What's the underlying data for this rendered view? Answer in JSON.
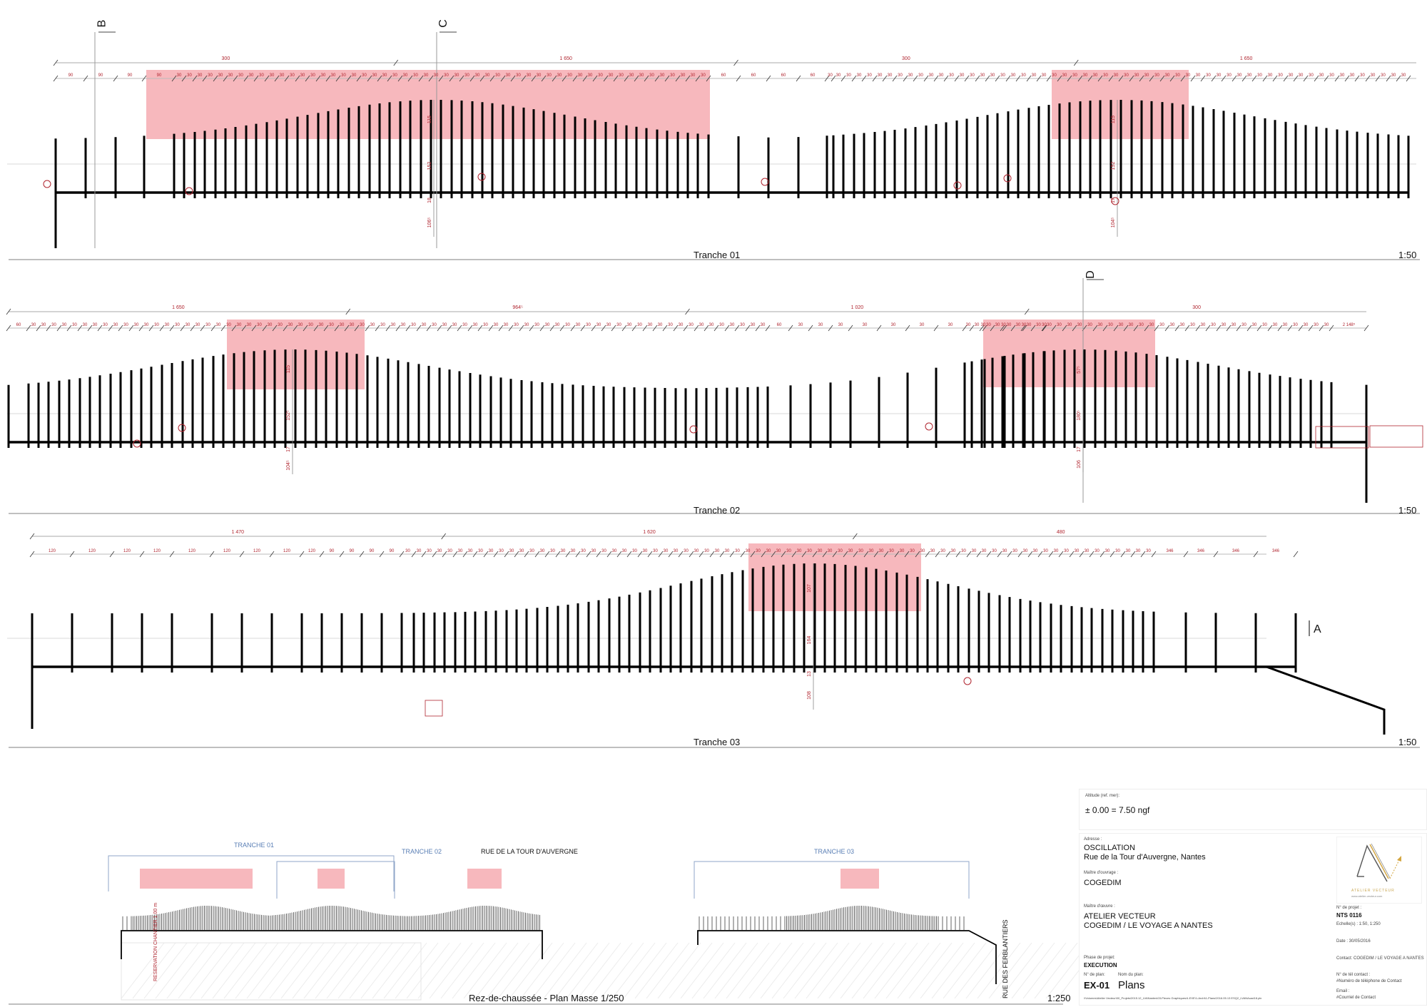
{
  "drawing": {
    "section_markers": [
      "B",
      "C",
      "D",
      "A"
    ],
    "dim_color": "#b0252f",
    "highlight_color": "#f7b8bd",
    "post_color": "#000000",
    "plan_label_color": "#5a7fb5"
  },
  "tranches": [
    {
      "label": "Tranche 01",
      "scale": "1:50",
      "overall_dims": [
        "300",
        "1 650",
        "300",
        "1 650"
      ],
      "detail_dims": [
        "90",
        "90",
        "60",
        "60",
        "30",
        "60",
        "90",
        "120",
        "90",
        "60",
        "30"
      ],
      "vertical_dims": [
        {
          "values": [
            "115",
            "152",
            "18",
            "106⁵"
          ]
        },
        {
          "values": [
            "115",
            "152",
            "17",
            "104⁵"
          ]
        }
      ],
      "segments": [
        {
          "type": "flat",
          "count": 4,
          "spacing": 90
        },
        {
          "type": "arch",
          "count": 53,
          "spacing": 30
        },
        {
          "type": "flat",
          "count": 5,
          "spacing": 90
        },
        {
          "type": "arch",
          "count": 53,
          "spacing": 30
        }
      ]
    },
    {
      "label": "Tranche 02",
      "scale": "1:50",
      "overall_dims": [
        "1 650",
        "964⁵",
        "1 020",
        "300"
      ],
      "detail_dims": [
        "60",
        "30",
        "60",
        "90",
        "94⁵",
        "60",
        "30",
        "60",
        "90",
        "2 148⁵"
      ],
      "vertical_dims": [
        {
          "values": [
            "115",
            "152⁵",
            "17",
            "104⁵"
          ]
        },
        {
          "values": [
            "57⁵",
            "180⁵",
            "17",
            "106"
          ]
        }
      ]
    },
    {
      "label": "Tranche 03",
      "scale": "1:50",
      "overall_dims": [
        "1 470",
        "1 620",
        "480"
      ],
      "detail_dims": [
        "120",
        "120",
        "90",
        "90",
        "120",
        "90",
        "90",
        "90",
        "60",
        "60",
        "60",
        "60",
        "60",
        "30",
        "60",
        "90",
        "90",
        "120",
        "120",
        "346"
      ],
      "vertical_dims": [
        {
          "values": [
            "107",
            "164",
            "13",
            "108"
          ]
        }
      ]
    }
  ],
  "plan": {
    "caption": "Rez-de-chaussée - Plan Masse 1/250",
    "scale": "1:250",
    "tranche_labels": [
      "TRANCHE 01",
      "TRANCHE 02",
      "TRANCHE 03"
    ],
    "street_top": "RUE DE LA TOUR D'AUVERGNE",
    "street_side": "RUE DES FERBLANTIERS",
    "reservation": "RESERVATION CHANTIER 1.00 m"
  },
  "title_block": {
    "altitude_label": "Altitude (ref. mer):",
    "altitude_value": "± 0.00 = 7.50 ngf",
    "address_label": "Adresse :",
    "project_name": "OSCILLATION",
    "address": "Rue de la Tour d'Auvergne, Nantes",
    "owner_label": "Maître d'ouvrage :",
    "owner": "COGEDIM",
    "architect_label": "Maître d'œuvre :",
    "architect_line1": "ATELIER VECTEUR",
    "architect_line2": "COGEDIM / LE VOYAGE A NANTES",
    "logo_text": "ATELIER VECTEUR",
    "logo_url_text": "www.atelier-vecteur.com",
    "project_no_label": "N° de projet :",
    "project_no": "NTS 0116",
    "scales": "Echelle(s) : 1:50, 1:250",
    "date": "Date : 30/05/2016",
    "contact": "Contact: COGEDIM / LE VOYAGE A NANTES",
    "phase_label": "Phase de projet:",
    "phase": "EXECUTION",
    "plan_no_label": "N° de plan:",
    "plan_no": "EX-01",
    "plan_name_label": "Nom du plan:",
    "plan_name": "Plans",
    "phone_label": "N° de tél contact :",
    "phone": "#Numéro de téléphone de Contact",
    "email_label": "Email :",
    "email": "#Courriel de Contact",
    "file_path": "\\\\Volumes\\Atelier Vecteur\\00_Projets\\2015.12_LVANantes\\03-Pieces Graphiques\\4-EXE\\1-Archi\\1-Plans\\2016.05.13 ESQ2_LVANAuad18.pln"
  }
}
